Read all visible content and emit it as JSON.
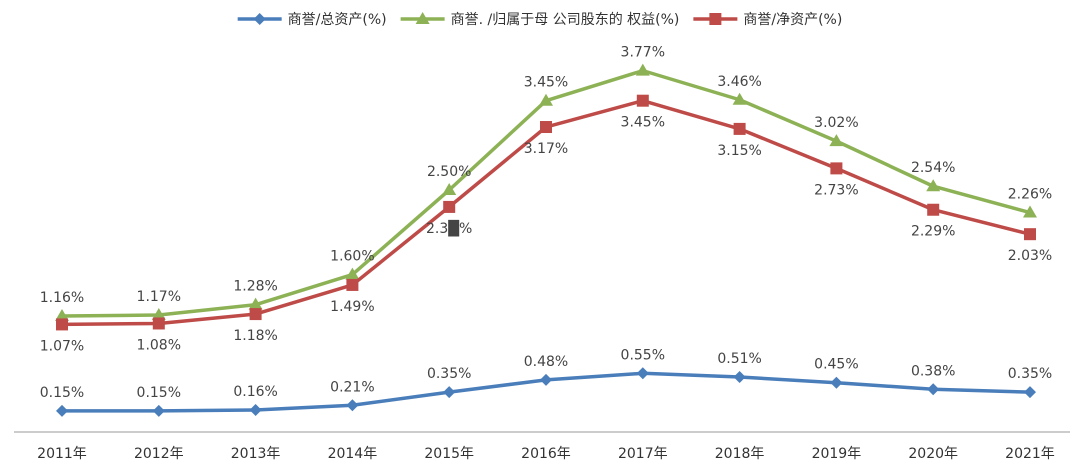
{
  "chart_data": {
    "type": "line",
    "categories": [
      "2011年",
      "2012年",
      "2013年",
      "2014年",
      "2015年",
      "2016年",
      "2017年",
      "2018年",
      "2019年",
      "2020年",
      "2021年"
    ],
    "series": [
      {
        "name": "商誉/总资产(%)",
        "color": "#4a7ebb",
        "marker": "diamond",
        "values": [
          0.15,
          0.15,
          0.16,
          0.21,
          0.35,
          0.48,
          0.55,
          0.51,
          0.45,
          0.38,
          0.35
        ],
        "labels": [
          "0.15%",
          "0.15%",
          "0.16%",
          "0.21%",
          "0.35%",
          "0.48%",
          "0.55%",
          "0.51%",
          "0.45%",
          "0.38%",
          "0.35%"
        ],
        "label_position": "above"
      },
      {
        "name": "商誉. /归属于母 公司股东的 权益(%)",
        "color": "#8db255",
        "marker": "triangle",
        "values": [
          1.16,
          1.17,
          1.28,
          1.6,
          2.5,
          3.45,
          3.77,
          3.46,
          3.02,
          2.54,
          2.26
        ],
        "labels": [
          "1.16%",
          "1.17%",
          "1.28%",
          "1.60%",
          "2.50%",
          "3.45%",
          "3.77%",
          "3.46%",
          "3.02%",
          "2.54%",
          "2.26%"
        ],
        "label_position": "above"
      },
      {
        "name": "商誉/净资产(%)",
        "color": "#be4b48",
        "marker": "square",
        "values": [
          1.07,
          1.08,
          1.18,
          1.49,
          2.32,
          3.17,
          3.45,
          3.15,
          2.73,
          2.29,
          2.03
        ],
        "labels": [
          "1.07%",
          "1.08%",
          "1.18%",
          "1.49%",
          "2.3█%",
          "3.17%",
          "3.45%",
          "3.15%",
          "2.73%",
          "2.29%",
          "2.03%"
        ],
        "label_position": "below"
      }
    ],
    "ylim": [
      0,
      4.25
    ],
    "grid": false,
    "legend_position": "top"
  }
}
